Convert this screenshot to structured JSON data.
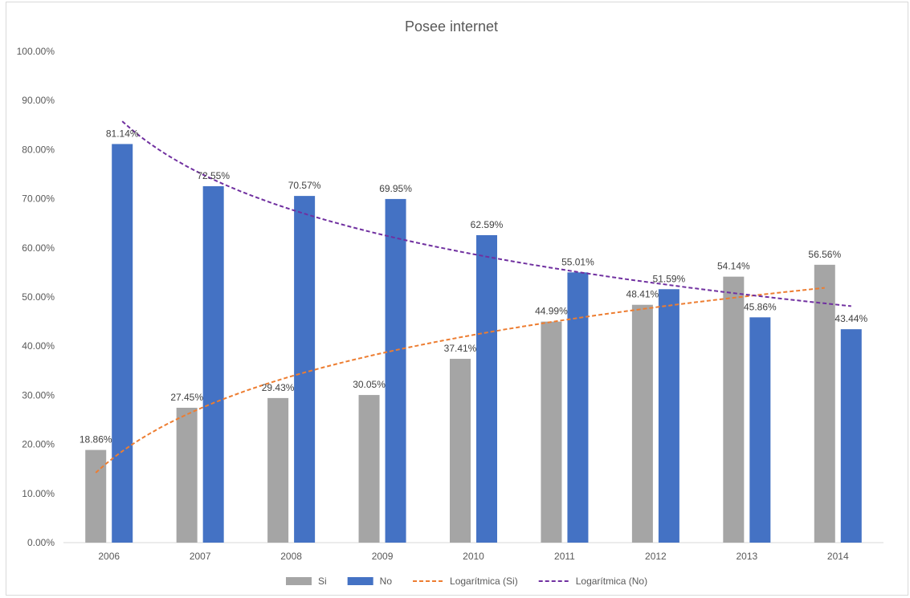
{
  "chart_data": {
    "type": "bar",
    "title": "Posee internet",
    "categories": [
      "2006",
      "2007",
      "2008",
      "2009",
      "2010",
      "2011",
      "2012",
      "2013",
      "2014"
    ],
    "series": [
      {
        "name": "Si",
        "color": "#a5a5a5",
        "values": [
          18.86,
          27.45,
          29.43,
          30.05,
          37.41,
          44.99,
          48.41,
          54.14,
          56.56
        ]
      },
      {
        "name": "No",
        "color": "#4472c4",
        "values": [
          81.14,
          72.55,
          70.57,
          69.95,
          62.59,
          55.01,
          51.59,
          45.86,
          43.44
        ]
      }
    ],
    "data_labels": {
      "Si": [
        "18.86%",
        "27.45%",
        "29.43%",
        "30.05%",
        "37.41%",
        "44.99%",
        "48.41%",
        "54.14%",
        "56.56%"
      ],
      "No": [
        "81.14%",
        "72.55%",
        "70.57%",
        "69.95%",
        "62.59%",
        "55.01%",
        "51.59%",
        "45.86%",
        "43.44%"
      ]
    },
    "trendlines": [
      {
        "name": "Logarítmica (Si)",
        "type": "logarithmic",
        "of": "Si",
        "color": "#ed7d31",
        "style": "dashed"
      },
      {
        "name": "Logarítmica (No)",
        "type": "logarithmic",
        "of": "No",
        "color": "#7030a0",
        "style": "dashed"
      }
    ],
    "y_ticks": [
      "0.00%",
      "10.00%",
      "20.00%",
      "30.00%",
      "40.00%",
      "50.00%",
      "60.00%",
      "70.00%",
      "80.00%",
      "90.00%",
      "100.00%"
    ],
    "ylim": [
      0,
      100
    ],
    "xlabel": "",
    "ylabel": "",
    "grid": false,
    "legend": "bottom"
  }
}
